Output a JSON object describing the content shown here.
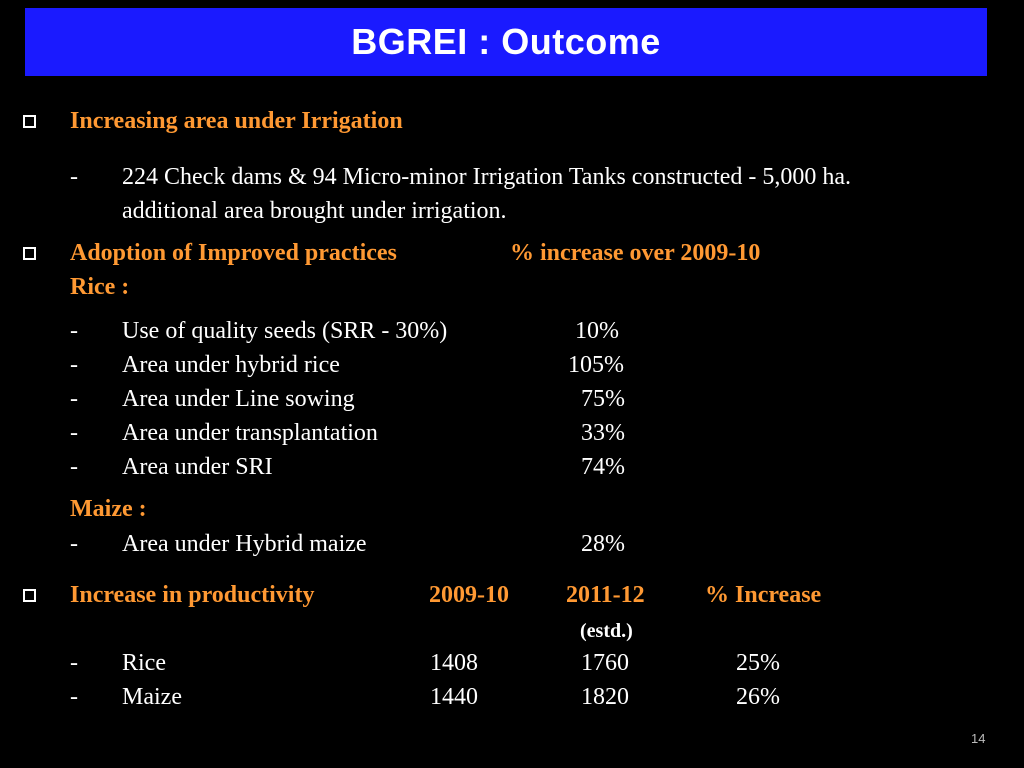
{
  "title": "BGREI : Outcome",
  "section1": {
    "heading": "Increasing area under Irrigation",
    "dash": "-",
    "line1": "224 Check dams & 94 Micro-minor Irrigation Tanks constructed - 5,000 ha.",
    "line2": "additional area brought under irrigation."
  },
  "section2": {
    "heading": "Adoption of Improved practices",
    "col_heading": "% increase over 2009-10",
    "rice_label": "Rice :",
    "rice_items": [
      {
        "dash": "-",
        "label": "Use of quality seeds (SRR - 30%)",
        "value": "10%"
      },
      {
        "dash": "-",
        "label": "Area under hybrid rice",
        "value": "105%"
      },
      {
        "dash": "-",
        "label": "Area under Line sowing",
        "value": "75%"
      },
      {
        "dash": "-",
        "label": "Area under transplantation",
        "value": "33%"
      },
      {
        "dash": "-",
        "label": "Area under SRI",
        "value": "74%"
      }
    ],
    "maize_label": "Maize :",
    "maize_items": [
      {
        "dash": "-",
        "label": "Area under Hybrid maize",
        "value": "28%"
      }
    ]
  },
  "section3": {
    "heading": "Increase in productivity",
    "col1": "2009-10",
    "col2": "2011-12",
    "col3": "% Increase",
    "col2_note": "(estd.)",
    "rows": [
      {
        "dash": "-",
        "crop": "Rice",
        "v1": "1408",
        "v2": "1760",
        "v3": "25%"
      },
      {
        "dash": "-",
        "crop": "Maize",
        "v1": "1440",
        "v2": "1820",
        "v3": "26%"
      }
    ]
  },
  "page_number": "14",
  "colors": {
    "title_bar": "#1a1aff",
    "heading": "#ff9933",
    "background": "#000000"
  }
}
